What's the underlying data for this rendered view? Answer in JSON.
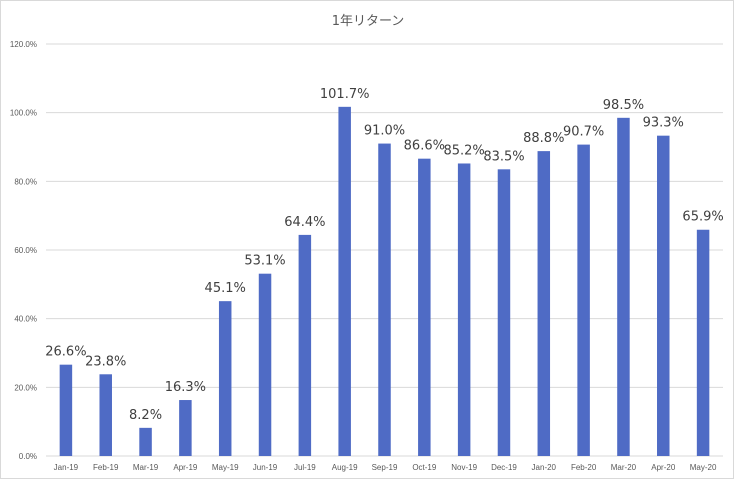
{
  "chart_data": {
    "type": "bar",
    "title": "1年リターン",
    "xlabel": "",
    "ylabel": "",
    "ylim": [
      0,
      120
    ],
    "y_ticks": [
      "0.0%",
      "20.0%",
      "40.0%",
      "60.0%",
      "80.0%",
      "100.0%",
      "120.0%"
    ],
    "grid": true,
    "legend": "none",
    "bar_color": "#4f6bc5",
    "categories": [
      "Jan-19",
      "Feb-19",
      "Mar-19",
      "Apr-19",
      "May-19",
      "Jun-19",
      "Jul-19",
      "Aug-19",
      "Sep-19",
      "Oct-19",
      "Nov-19",
      "Dec-19",
      "Jan-20",
      "Feb-20",
      "Mar-20",
      "Apr-20",
      "May-20"
    ],
    "values": [
      26.6,
      23.8,
      8.2,
      16.3,
      45.1,
      53.1,
      64.4,
      101.7,
      91.0,
      86.6,
      85.2,
      83.5,
      88.8,
      90.7,
      98.5,
      93.3,
      65.9
    ],
    "data_labels": [
      "26.6%",
      "23.8%",
      "8.2%",
      "16.3%",
      "45.1%",
      "53.1%",
      "64.4%",
      "101.7%",
      "91.0%",
      "86.6%",
      "85.2%",
      "83.5%",
      "88.8%",
      "90.7%",
      "98.5%",
      "93.3%",
      "65.9%"
    ]
  }
}
